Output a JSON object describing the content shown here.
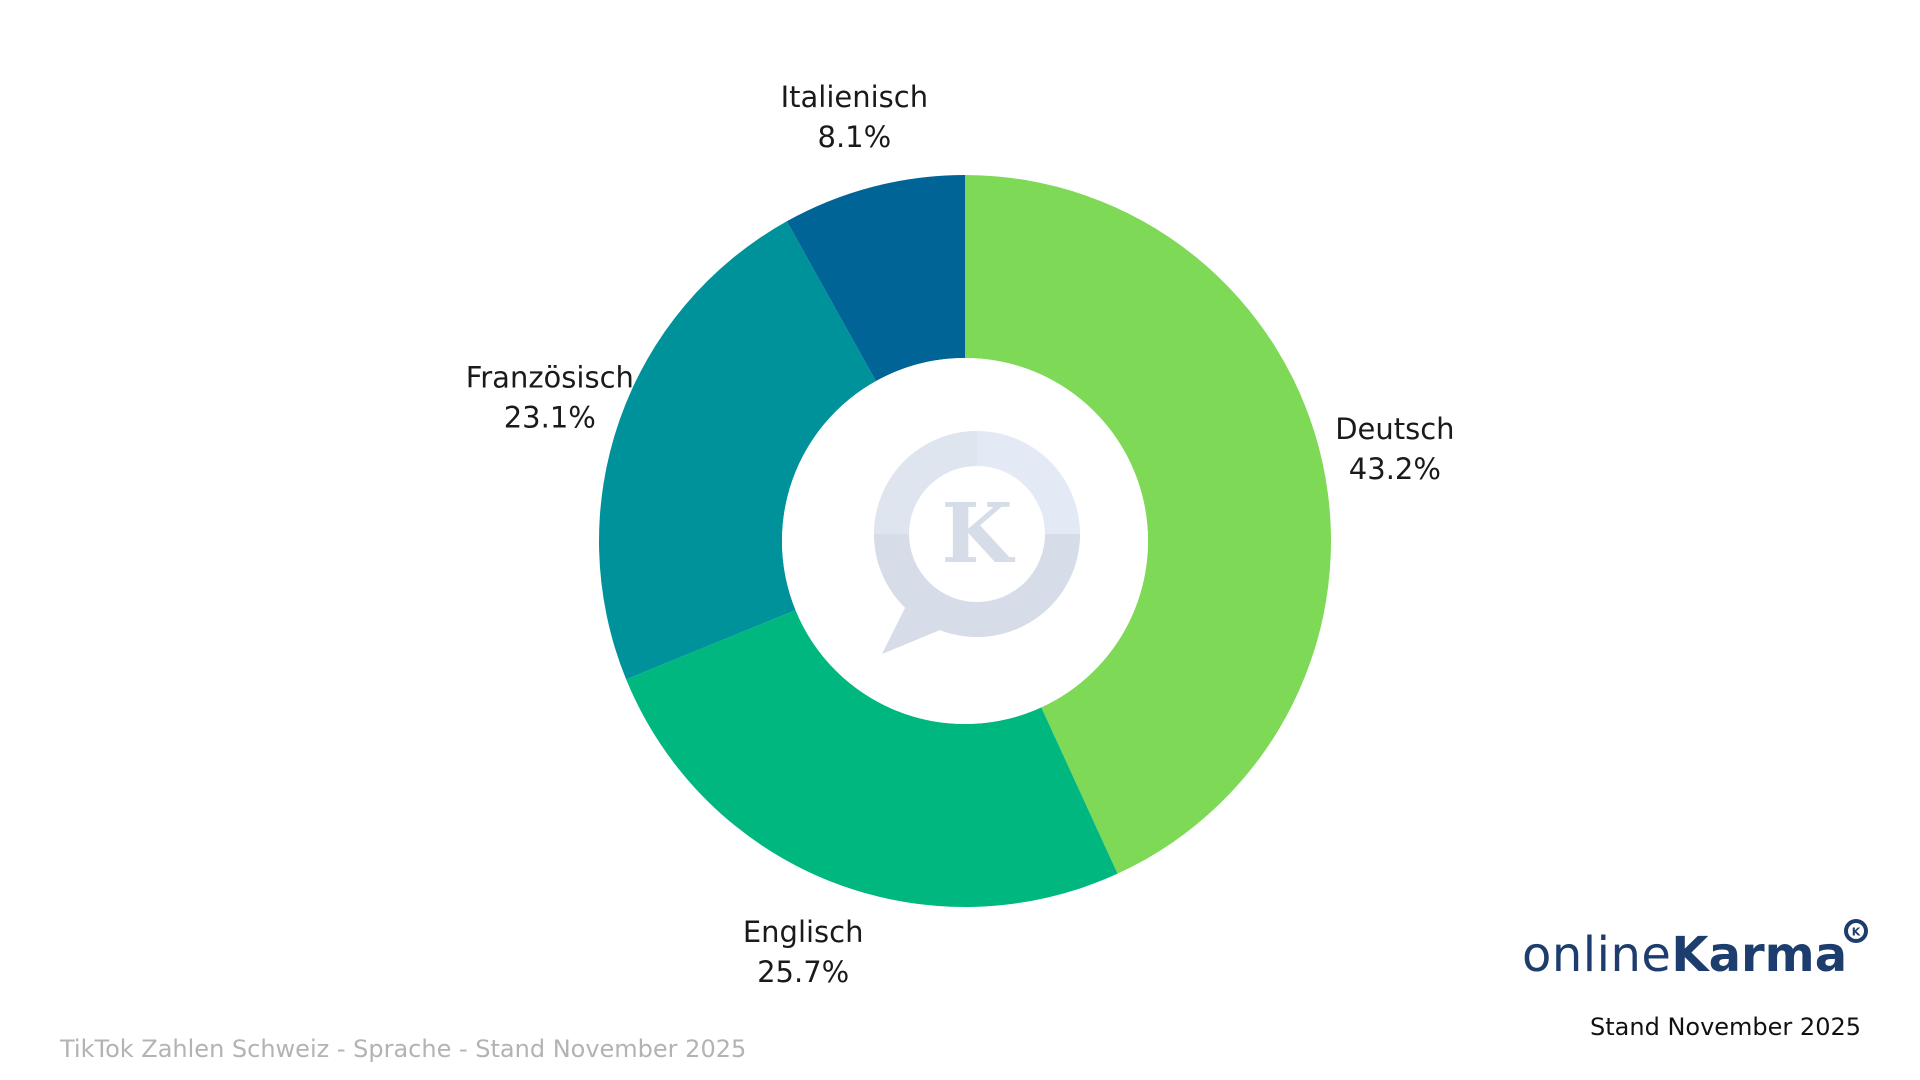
{
  "chart_data": {
    "type": "donut",
    "start_angle_deg": 0,
    "direction": "clockwise",
    "slices": [
      {
        "label": "Deutsch",
        "value": 43.2,
        "display": "43.2%",
        "color": "#7ed957"
      },
      {
        "label": "Englisch",
        "value": 25.7,
        "display": "25.7%",
        "color": "#00b87f"
      },
      {
        "label": "Französisch",
        "value": 23.1,
        "display": "23.1%",
        "color": "#00929a"
      },
      {
        "label": "Italienisch",
        "value": 8.1,
        "display": "8.1%",
        "color": "#006596"
      }
    ]
  },
  "footer": {
    "caption": "TikTok Zahlen Schweiz - Sprache - Stand November 2025",
    "date": "Stand November 2025"
  },
  "brand": {
    "part_light": "online",
    "part_bold": "Karma",
    "badge_letter": "K",
    "color": "#1d3d6e"
  },
  "center_logo": {
    "icon": "karma-k-speech-bubble-icon",
    "letter": "K"
  }
}
